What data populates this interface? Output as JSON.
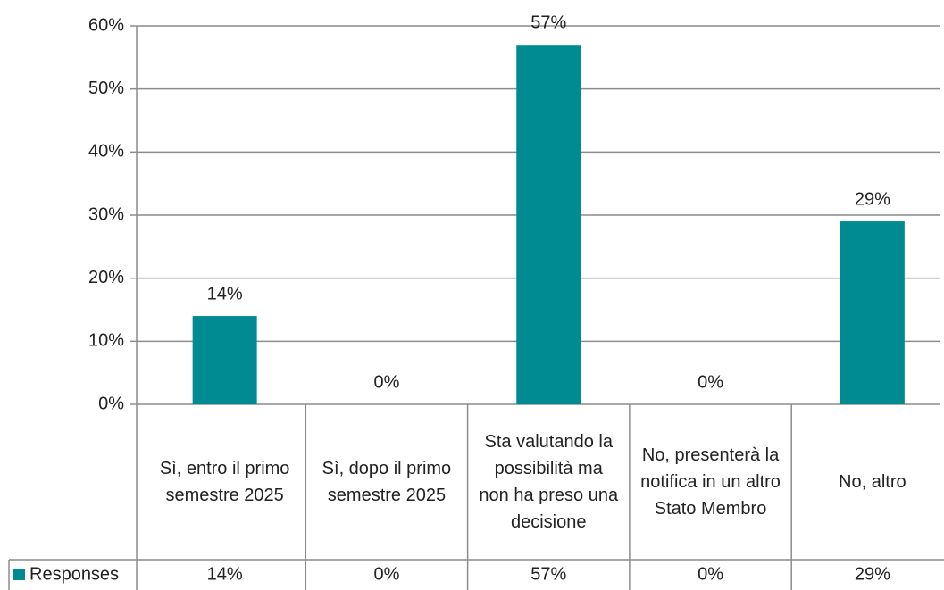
{
  "chart_data": {
    "type": "bar",
    "categories": [
      "Sì, entro il primo semestre 2025",
      "Sì, dopo il primo semestre 2025",
      "Sta valutando la possibilità ma non ha preso una decisione",
      "No, presenterà la notifica in un altro Stato Membro",
      "No, altro"
    ],
    "series": [
      {
        "name": "Responses",
        "color": "#008b92",
        "values": [
          14,
          0,
          57,
          0,
          29
        ],
        "value_labels": [
          "14%",
          "0%",
          "57%",
          "0%",
          "29%"
        ]
      }
    ],
    "ylim": [
      0,
      60
    ],
    "yticks": [
      {
        "value": 0,
        "label": "0%"
      },
      {
        "value": 10,
        "label": "10%"
      },
      {
        "value": 20,
        "label": "20%"
      },
      {
        "value": 30,
        "label": "30%"
      },
      {
        "value": 40,
        "label": "40%"
      },
      {
        "value": 50,
        "label": "50%"
      },
      {
        "value": 60,
        "label": "60%"
      }
    ],
    "grid": true
  }
}
